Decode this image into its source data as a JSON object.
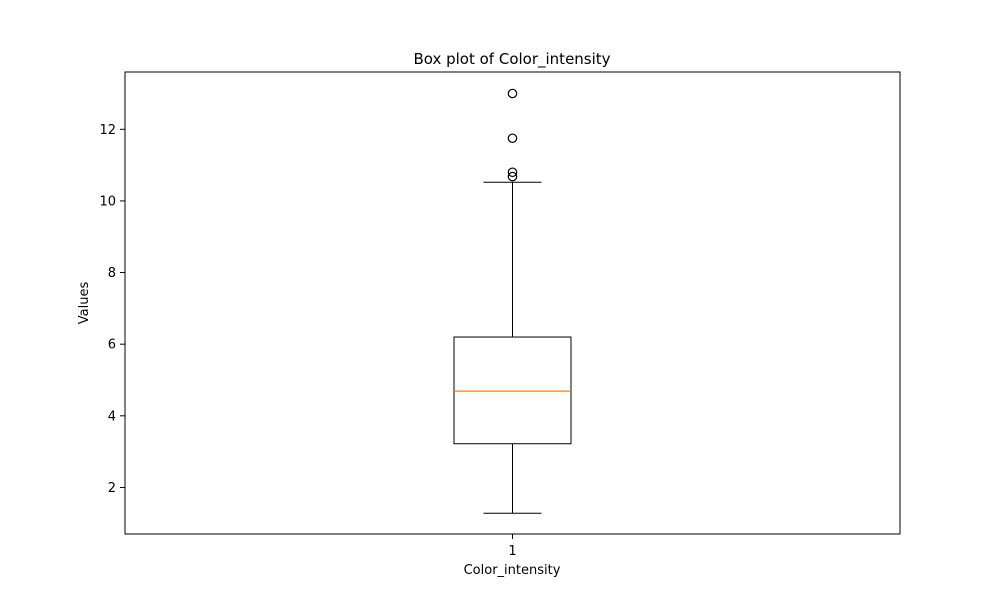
{
  "chart_data": {
    "type": "box",
    "title": "Box plot of Color_intensity",
    "xlabel": "Color_intensity",
    "ylabel": "Values",
    "categories": [
      "1"
    ],
    "ylim": [
      0.7,
      13.6
    ],
    "yticks": [
      2,
      4,
      6,
      8,
      10,
      12
    ],
    "ytick_labels": [
      "2",
      "4",
      "6",
      "8",
      "10",
      "12"
    ],
    "xtick_labels": [
      "1"
    ],
    "grid": false,
    "series": [
      {
        "whisker_low": 1.28,
        "q1": 3.22,
        "median": 4.69,
        "q3": 6.2,
        "whisker_high": 10.52,
        "outliers": [
          10.68,
          10.8,
          11.75,
          13.0
        ]
      }
    ],
    "colors": {
      "box": "#000000",
      "median": "#ff7f0e",
      "outlier_edge": "#000000"
    }
  }
}
